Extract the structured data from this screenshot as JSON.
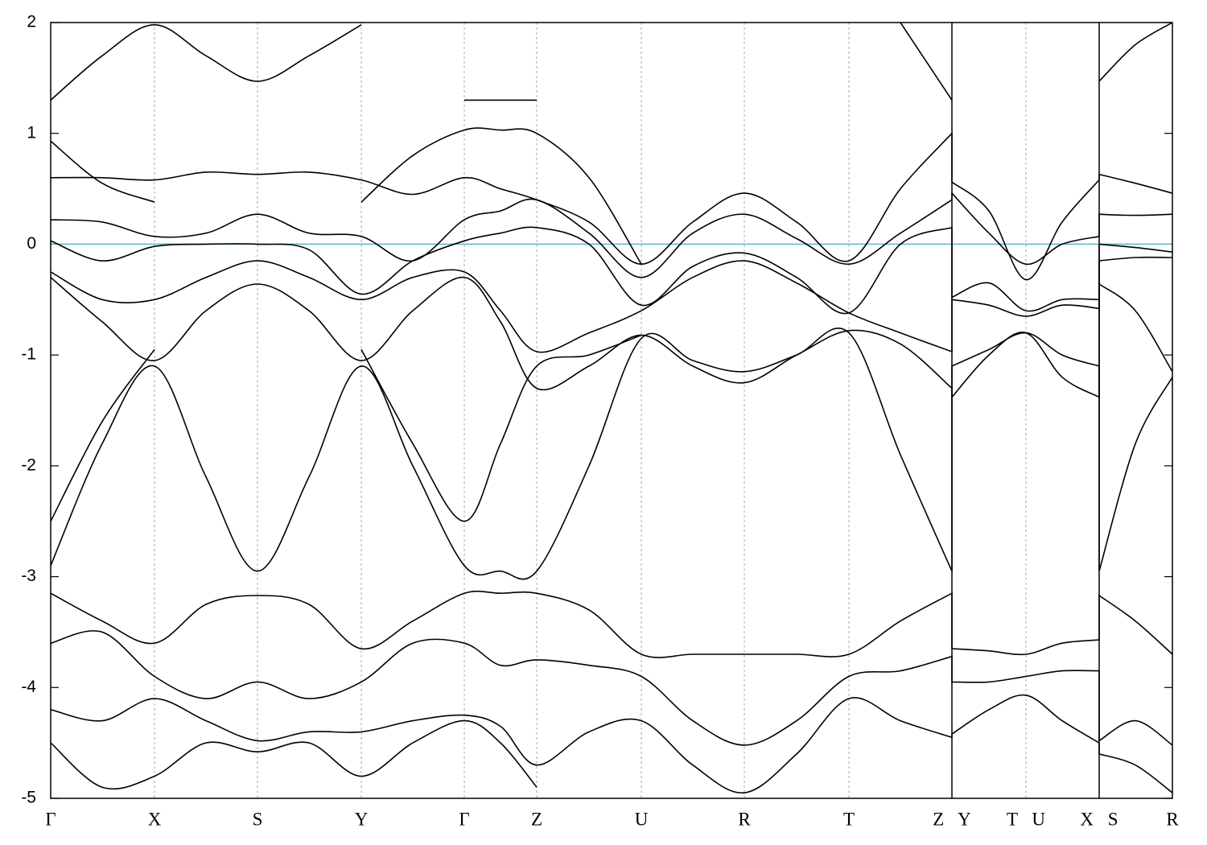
{
  "chart_data": {
    "type": "line",
    "x": [
      0,
      64,
      129,
      193,
      257,
      321,
      386,
      450,
      514,
      559,
      604,
      669,
      734,
      798,
      862,
      927,
      992,
      1056,
      1120,
      1120,
      1166,
      1212,
      1257,
      1303,
      1303,
      1348,
      1394
    ],
    "xlim": [
      0,
      1394
    ],
    "xticks": [
      {
        "value": 0,
        "label": "Γ"
      },
      {
        "value": 129,
        "label": "X"
      },
      {
        "value": 257,
        "label": "S"
      },
      {
        "value": 386,
        "label": "Y"
      },
      {
        "value": 514,
        "label": "Γ"
      },
      {
        "value": 604,
        "label": "Z"
      },
      {
        "value": 734,
        "label": "U"
      },
      {
        "value": 862,
        "label": "R"
      },
      {
        "value": 992,
        "label": "T"
      },
      {
        "value": 1120,
        "label": "Z Y"
      },
      {
        "value": 1212,
        "label": "T U"
      },
      {
        "value": 1303,
        "label": "X S"
      },
      {
        "value": 1394,
        "label": "R"
      }
    ],
    "breaks": [
      1120,
      1303
    ],
    "ylim": [
      -5,
      2
    ],
    "yticks": [
      -5,
      -4,
      -3,
      -2,
      -1,
      0,
      1,
      2
    ],
    "grid": true,
    "fermi_level": 0,
    "fermi_color": "#5fb3c7",
    "series": [
      {
        "color": "#000000",
        "values": [
          -2.9,
          -1.8,
          -1.1,
          -2.1,
          -2.95,
          -2.1,
          -1.1,
          -2.0,
          -2.9,
          -2.95,
          -2.95,
          -2.0,
          -0.85,
          -1.05,
          -1.15,
          -1.0,
          -0.8,
          -1.9,
          -2.95,
          -1.1,
          -0.95,
          -0.8,
          -1.0,
          -1.1,
          -2.95,
          -1.8,
          -1.2
        ]
      },
      {
        "color": "#000000",
        "values": [
          -0.3,
          -0.7,
          -1.05,
          -0.6,
          -0.36,
          -0.6,
          -1.05,
          -0.6,
          -0.3,
          -0.7,
          -1.3,
          -1.1,
          -0.82,
          -1.1,
          -1.25,
          -1.0,
          -0.78,
          -0.9,
          -1.3,
          -1.38,
          -1.0,
          -0.8,
          -1.2,
          -1.38,
          -0.36,
          -0.6,
          -1.15
        ]
      },
      {
        "color": "#000000",
        "values": [
          -0.25,
          -0.5,
          -0.5,
          -0.3,
          -0.15,
          -0.3,
          -0.5,
          -0.3,
          -0.25,
          -0.6,
          -0.97,
          -0.8,
          -0.6,
          -0.3,
          -0.15,
          -0.35,
          -0.62,
          -0.8,
          -0.97,
          -0.5,
          -0.55,
          -0.65,
          -0.55,
          -0.58,
          -0.15,
          -0.12,
          -0.12
        ]
      },
      {
        "color": "#000000",
        "values": [
          0.03,
          -0.15,
          -0.02,
          0,
          0,
          -0.05,
          -0.45,
          -0.15,
          0.03,
          0.1,
          0.15,
          0,
          -0.55,
          -0.2,
          -0.08,
          -0.3,
          -0.62,
          0,
          0.15,
          -0.48,
          -0.35,
          -0.6,
          -0.5,
          -0.5,
          0,
          -0.03,
          -0.07
        ]
      },
      {
        "color": "#000000",
        "values": [
          0.22,
          0.2,
          0.07,
          0.1,
          0.27,
          0.1,
          0.07,
          -0.15,
          0.22,
          0.3,
          0.4,
          0.1,
          -0.3,
          0.1,
          0.27,
          0.05,
          -0.18,
          0.1,
          0.4,
          0.46,
          0.1,
          -0.18,
          0,
          0.07,
          0.27,
          0.26,
          0.27
        ]
      },
      {
        "color": "#000000",
        "values": [
          0.6,
          0.6,
          0.58,
          0.65,
          0.63,
          0.65,
          0.58,
          0.45,
          0.6,
          0.5,
          0.4,
          0.2,
          -0.18,
          0.2,
          0.46,
          0.2,
          -0.15,
          0.5,
          1.0,
          0.56,
          0.3,
          -0.32,
          0.2,
          0.58,
          0.63,
          0.55,
          0.46
        ]
      },
      {
        "color": "#000000",
        "values": [
          1.3,
          1.7,
          1.98,
          1.7,
          1.47,
          1.7,
          1.98,
          null,
          1.3,
          1.3,
          1.3,
          null,
          null,
          null,
          null,
          null,
          null,
          2.0,
          1.3,
          null,
          null,
          null,
          null,
          null,
          1.47,
          1.8,
          2.0
        ]
      },
      {
        "color": "#000000",
        "values": [
          0.93,
          0.55,
          0.38,
          null,
          null,
          null,
          0.38,
          0.8,
          1.03,
          1.03,
          1.0,
          0.6,
          -0.18,
          null,
          null,
          null,
          null,
          null,
          null,
          null,
          null,
          null,
          null,
          null,
          null,
          null,
          null
        ]
      },
      {
        "color": "#000000",
        "values": [
          -3.15,
          -3.4,
          -3.6,
          -3.25,
          -3.17,
          -3.25,
          -3.65,
          -3.4,
          -3.15,
          -3.15,
          -3.15,
          -3.3,
          -3.7,
          -3.7,
          -3.7,
          -3.7,
          -3.7,
          -3.4,
          -3.15,
          -3.65,
          -3.67,
          -3.7,
          -3.6,
          -3.57,
          -3.17,
          -3.4,
          -3.7
        ]
      },
      {
        "color": "#000000",
        "values": [
          -3.6,
          -3.5,
          -3.9,
          -4.1,
          -3.95,
          -4.1,
          -3.95,
          -3.6,
          -3.6,
          -3.8,
          -3.75,
          -3.8,
          -3.9,
          -4.3,
          -4.52,
          -4.3,
          -3.9,
          -3.85,
          -3.72,
          -3.95,
          -3.95,
          -3.9,
          -3.85,
          -3.85,
          -4.48,
          -4.3,
          -4.52
        ]
      },
      {
        "color": "#000000",
        "values": [
          -4.2,
          -4.3,
          -4.1,
          -4.3,
          -4.48,
          -4.4,
          -4.4,
          -4.3,
          -4.25,
          -4.35,
          -4.7,
          -4.4,
          -4.3,
          -4.7,
          -4.95,
          -4.6,
          -4.1,
          -4.3,
          -4.45,
          -4.42,
          -4.2,
          -4.07,
          -4.3,
          -4.5,
          -4.6,
          -4.7,
          -4.95
        ]
      },
      {
        "color": "#000000",
        "values": [
          -4.5,
          -4.9,
          -4.8,
          -4.5,
          -4.58,
          -4.5,
          -4.8,
          -4.5,
          -4.3,
          -4.5,
          -4.9,
          null,
          null,
          null,
          null,
          null,
          null,
          null,
          null,
          null,
          null,
          null,
          null,
          null,
          null,
          null,
          null
        ]
      },
      {
        "color": "#000000",
        "values": [
          -2.5,
          -1.6,
          -0.95,
          null,
          null,
          null,
          -0.95,
          -1.8,
          -2.5,
          -1.8,
          -1.1,
          -1.0,
          -0.82,
          null,
          null,
          null,
          null,
          null,
          null,
          null,
          null,
          null,
          null,
          null,
          null,
          null,
          null
        ]
      }
    ]
  }
}
